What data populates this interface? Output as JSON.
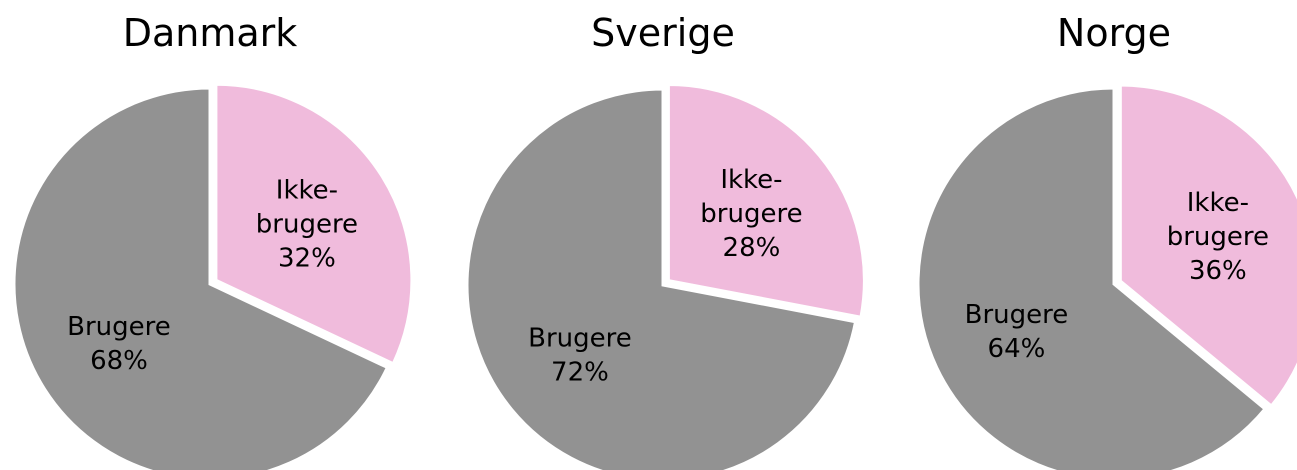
{
  "chart_data": [
    {
      "type": "pie",
      "title": "Danmark",
      "categories": [
        "Ikke-brugere",
        "Brugere"
      ],
      "values": [
        32,
        68
      ],
      "value_labels": [
        "32%",
        "68%"
      ],
      "colors": [
        "#f0bbdc",
        "#929292"
      ]
    },
    {
      "type": "pie",
      "title": "Sverige",
      "categories": [
        "Ikke-brugere",
        "Brugere"
      ],
      "values": [
        28,
        72
      ],
      "value_labels": [
        "28%",
        "72%"
      ],
      "colors": [
        "#f0bbdc",
        "#929292"
      ]
    },
    {
      "type": "pie",
      "title": "Norge",
      "categories": [
        "Ikke-brugere",
        "Brugere"
      ],
      "values": [
        36,
        64
      ],
      "value_labels": [
        "36%",
        "64%"
      ],
      "colors": [
        "#f0bbdc",
        "#929292"
      ]
    }
  ]
}
